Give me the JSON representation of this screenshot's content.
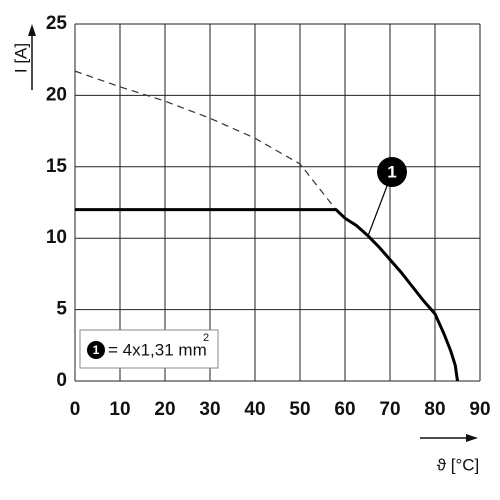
{
  "chart_data": {
    "type": "line",
    "xlabel": "ϑ [°C]",
    "ylabel": "I [A]",
    "xlim": [
      0,
      90
    ],
    "xticks": [
      0,
      10,
      20,
      30,
      40,
      50,
      60,
      70,
      80,
      90
    ],
    "ylim": [
      0,
      25
    ],
    "yticks": [
      0,
      5,
      10,
      15,
      20,
      25
    ],
    "grid": true,
    "series": [
      {
        "color": "#333333",
        "style": "dashed",
        "x": [
          0,
          10,
          20,
          30,
          40,
          50,
          58
        ],
        "values": [
          21.7,
          20.6,
          19.6,
          18.4,
          17,
          15.2,
          12
        ]
      },
      {
        "color": "#000000",
        "style": "solid",
        "x": [
          0,
          58,
          60,
          62.5,
          65,
          67.5,
          70,
          72.5,
          75,
          77.5,
          80,
          82,
          83.5,
          84.5,
          85
        ],
        "values": [
          12,
          12,
          11.4,
          10.9,
          10.2,
          9.4,
          8.5,
          7.6,
          6.6,
          5.6,
          4.7,
          3.3,
          2.1,
          1.1,
          0
        ]
      }
    ],
    "annotation": {
      "marker": "1",
      "text": "= 4x1,31 mm",
      "superscript": "2"
    }
  }
}
